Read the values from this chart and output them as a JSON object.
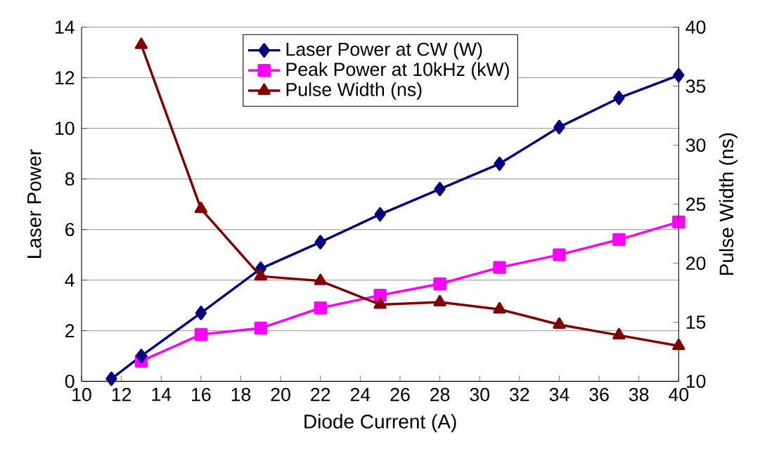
{
  "chart_data": {
    "type": "line",
    "xlabel": "Diode Current (A)",
    "ylabel": "Laser Power",
    "y2label": "Pulse Width (ns)",
    "xlim": [
      10,
      40
    ],
    "xticks": [
      10,
      12,
      14,
      16,
      18,
      20,
      22,
      24,
      26,
      28,
      30,
      32,
      34,
      36,
      38,
      40
    ],
    "ylim": [
      0,
      14
    ],
    "yticks": [
      0,
      2,
      4,
      6,
      8,
      10,
      12,
      14
    ],
    "y2lim": [
      10,
      40
    ],
    "y2ticks": [
      10,
      15,
      20,
      25,
      30,
      35,
      40
    ],
    "grid": "y",
    "legend": "top",
    "series": [
      {
        "name": "Laser Power at CW (W)",
        "color": "#000080",
        "marker": "diamond",
        "x": [
          11.5,
          13,
          16,
          19,
          22,
          25,
          28,
          31,
          34,
          37,
          40
        ],
        "values": [
          0.1,
          1.0,
          2.7,
          4.45,
          5.5,
          6.6,
          7.6,
          8.6,
          10.05,
          11.2,
          12.1
        ]
      },
      {
        "name": "Peak Power at 10kHz (kW)",
        "color": "#ff00ff",
        "marker": "square",
        "x": [
          13,
          16,
          19,
          22,
          25,
          28,
          31,
          34,
          37,
          40
        ],
        "values": [
          0.8,
          1.85,
          2.1,
          2.9,
          3.4,
          3.85,
          4.5,
          5.0,
          5.6,
          6.3
        ]
      },
      {
        "name": "Pulse Width (ns)",
        "color": "#800000",
        "marker": "triangle",
        "axis": "y2",
        "x": [
          13,
          16,
          19,
          22,
          25,
          28,
          31,
          34,
          37,
          40
        ],
        "values": [
          38.5,
          24.6,
          18.9,
          18.5,
          16.5,
          16.7,
          16.1,
          14.8,
          13.9,
          13.0
        ]
      }
    ]
  }
}
